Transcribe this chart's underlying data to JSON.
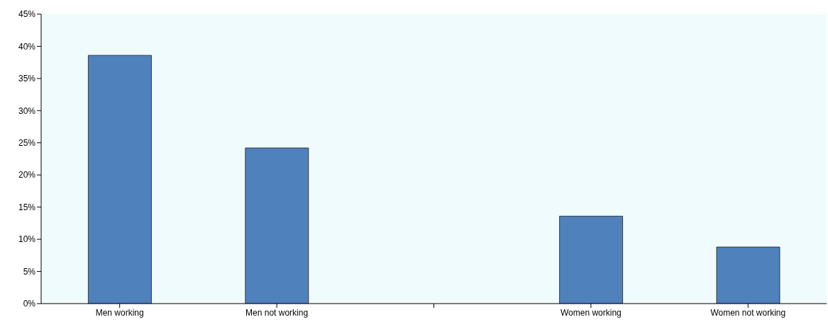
{
  "chart_data": {
    "type": "bar",
    "categories": [
      "Men working",
      "Men not working",
      null,
      "Women working",
      "Women not working"
    ],
    "values": [
      38.6,
      24.2,
      null,
      13.6,
      8.8
    ],
    "color": "#4f81bd",
    "ylim": [
      0,
      45
    ],
    "yticks": [
      {
        "value": 0,
        "label": "0%"
      },
      {
        "value": 5,
        "label": "5%"
      },
      {
        "value": 10,
        "label": "10%"
      },
      {
        "value": 15,
        "label": "15%"
      },
      {
        "value": 20,
        "label": "20%"
      },
      {
        "value": 25,
        "label": "25%"
      },
      {
        "value": 30,
        "label": "30%"
      },
      {
        "value": 35,
        "label": "35%"
      },
      {
        "value": 40,
        "label": "40%"
      },
      {
        "value": 45,
        "label": "45%"
      }
    ],
    "grid": false
  }
}
